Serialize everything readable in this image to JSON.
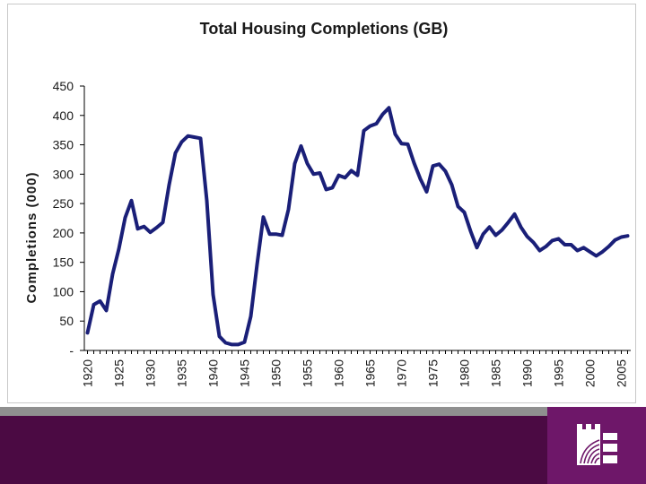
{
  "chart_data": {
    "type": "line",
    "title": "Total Housing Completions (GB)",
    "ylabel": "Completions (000)",
    "xlabel": "",
    "ylim": [
      0,
      450
    ],
    "xlim": [
      1919.5,
      2006.5
    ],
    "grid": false,
    "legend": "none",
    "line_color": "#1a1f78",
    "yticks": [
      {
        "value": 0,
        "label": "-"
      },
      {
        "value": 50,
        "label": "50"
      },
      {
        "value": 100,
        "label": "100"
      },
      {
        "value": 150,
        "label": "150"
      },
      {
        "value": 200,
        "label": "200"
      },
      {
        "value": 250,
        "label": "250"
      },
      {
        "value": 300,
        "label": "300"
      },
      {
        "value": 350,
        "label": "350"
      },
      {
        "value": 400,
        "label": "400"
      },
      {
        "value": 450,
        "label": "450"
      }
    ],
    "xticks": [
      {
        "value": 1920,
        "label": "1920"
      },
      {
        "value": 1925,
        "label": "1925"
      },
      {
        "value": 1930,
        "label": "1930"
      },
      {
        "value": 1935,
        "label": "1935"
      },
      {
        "value": 1940,
        "label": "1940"
      },
      {
        "value": 1945,
        "label": "1945"
      },
      {
        "value": 1950,
        "label": "1950"
      },
      {
        "value": 1955,
        "label": "1955"
      },
      {
        "value": 1960,
        "label": "1960"
      },
      {
        "value": 1965,
        "label": "1965"
      },
      {
        "value": 1970,
        "label": "1970"
      },
      {
        "value": 1975,
        "label": "1975"
      },
      {
        "value": 1980,
        "label": "1980"
      },
      {
        "value": 1985,
        "label": "1985"
      },
      {
        "value": 1990,
        "label": "1990"
      },
      {
        "value": 1995,
        "label": "1995"
      },
      {
        "value": 2000,
        "label": "2000"
      },
      {
        "value": 2005,
        "label": "2005"
      }
    ],
    "series": [
      {
        "name": "Total Housing Completions",
        "x": [
          1920,
          1921,
          1922,
          1923,
          1924,
          1925,
          1926,
          1927,
          1928,
          1929,
          1930,
          1931,
          1932,
          1933,
          1934,
          1935,
          1936,
          1937,
          1938,
          1939,
          1940,
          1941,
          1942,
          1943,
          1944,
          1945,
          1946,
          1947,
          1948,
          1949,
          1950,
          1951,
          1952,
          1953,
          1954,
          1955,
          1956,
          1957,
          1958,
          1959,
          1960,
          1961,
          1962,
          1963,
          1964,
          1965,
          1966,
          1967,
          1968,
          1969,
          1970,
          1971,
          1972,
          1973,
          1974,
          1975,
          1976,
          1977,
          1978,
          1979,
          1980,
          1981,
          1982,
          1983,
          1984,
          1985,
          1986,
          1987,
          1988,
          1989,
          1990,
          1991,
          1992,
          1993,
          1994,
          1995,
          1996,
          1997,
          1998,
          1999,
          2000,
          2001,
          2002,
          2003,
          2004,
          2005,
          2006
        ],
        "values": [
          30,
          78,
          84,
          68,
          130,
          173,
          226,
          255,
          207,
          211,
          201,
          209,
          218,
          282,
          336,
          355,
          365,
          363,
          361,
          255,
          95,
          24,
          13,
          10,
          10,
          14,
          58,
          146,
          227,
          198,
          198,
          196,
          240,
          318,
          348,
          318,
          300,
          302,
          274,
          277,
          298,
          294,
          306,
          298,
          374,
          382,
          386,
          402,
          413,
          368,
          352,
          351,
          319,
          292,
          270,
          314,
          317,
          305,
          282,
          245,
          235,
          203,
          175,
          198,
          210,
          196,
          205,
          218,
          232,
          210,
          194,
          184,
          170,
          177,
          187,
          190,
          180,
          180,
          170,
          175,
          168,
          161,
          168,
          177,
          188,
          193,
          195
        ]
      }
    ]
  }
}
